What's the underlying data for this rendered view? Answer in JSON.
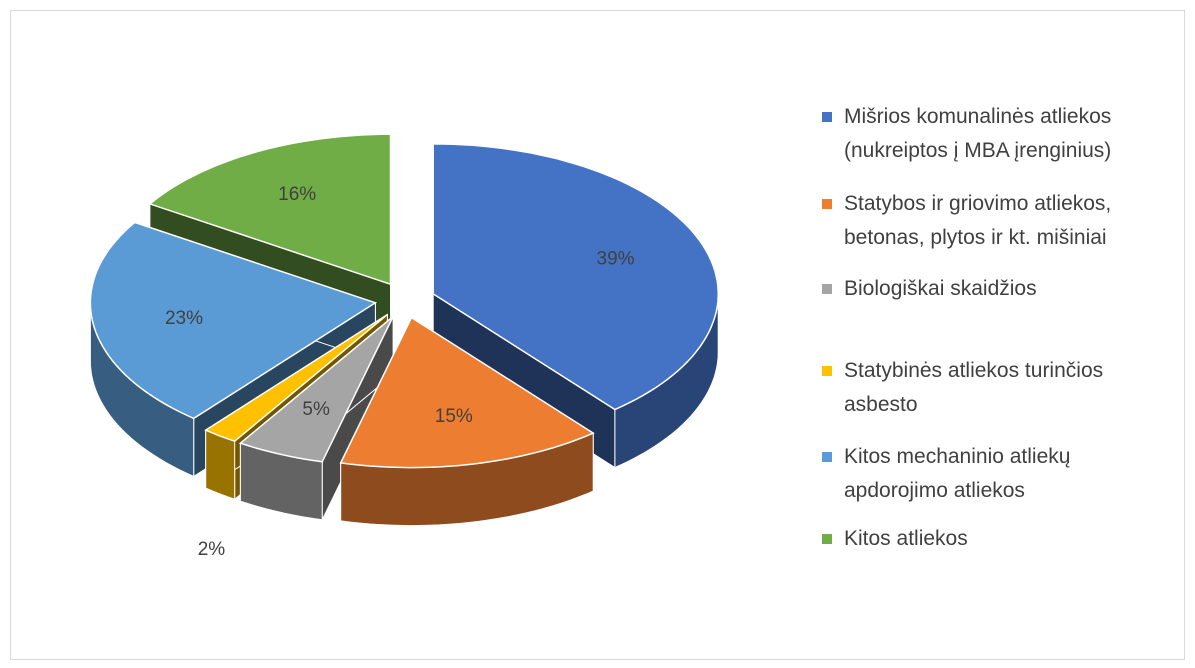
{
  "chart_data": {
    "type": "pie3d",
    "categories": [
      "Mišrios komunalinės atliekos (nukreiptos į MBA įrenginius)",
      "Statybos ir griovimo atliekos, betonas, plytos ir kt. mišiniai",
      "Biologiškai skaidžios",
      "Statybinės atliekos turinčios asbesto",
      "Kitos mechaninio atliekų apdorojimo atliekos",
      "Kitos atliekos"
    ],
    "values": [
      39,
      15,
      5,
      2,
      23,
      16
    ],
    "value_labels": [
      "39%",
      "15%",
      "5%",
      "2%",
      "23%",
      "16%"
    ],
    "colors": [
      "#4472c4",
      "#ed7d31",
      "#a5a5a5",
      "#ffc000",
      "#5b9bd5",
      "#70ad47"
    ],
    "legend": "right"
  }
}
